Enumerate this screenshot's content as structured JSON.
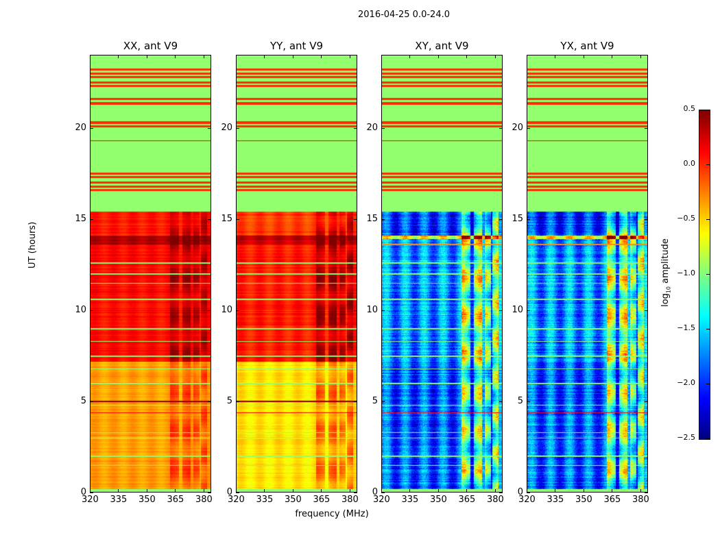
{
  "chart_data": {
    "type": "heatmap",
    "title": "2016-04-25 0.0-24.0",
    "xlabel": "frequency (MHz)",
    "ylabel": "UT (hours)",
    "xlim": [
      320,
      384
    ],
    "ylim": [
      0,
      24
    ],
    "xticks": [
      320,
      335,
      350,
      365,
      380
    ],
    "yticks": [
      0,
      5,
      10,
      15,
      20
    ],
    "colorbar": {
      "label_main": "log",
      "label_sub": "10",
      "label_rest": " amplitude",
      "colormap": "jet",
      "range": [
        -2.5,
        0.5
      ],
      "ticks": [
        0.5,
        0.0,
        -0.5,
        -1.0,
        -1.5,
        -2.0,
        -2.5
      ],
      "tick_labels": [
        "0.5",
        "0.0",
        "−0.5",
        "−1.0",
        "−1.5",
        "−2.0",
        "−2.5"
      ]
    },
    "flag_value": -0.95,
    "rfi_bands_mhz": [
      [
        362,
        367
      ],
      [
        368.5,
        373
      ],
      [
        374.5,
        377.5
      ],
      [
        378.5,
        381.5
      ]
    ],
    "flag_stripes_hours": [
      23.2,
      23.0,
      22.8,
      22.5,
      22.3,
      21.6,
      21.35,
      20.3,
      20.1,
      17.5,
      17.3,
      17.0,
      16.8,
      16.6
    ],
    "green_lines_hours": [
      12.6,
      11.5,
      9.0,
      7.5,
      6.8,
      6.0,
      4.8,
      3.3,
      3.0,
      2.0,
      1.5,
      12.0,
      10.6,
      8.3
    ],
    "panels": [
      {
        "title": "XX, ant V9",
        "kind": "auto",
        "segments": [
          {
            "from": 15.4,
            "to": 14.1,
            "value": 0.05
          },
          {
            "from": 14.1,
            "to": 13.6,
            "value": 0.38
          },
          {
            "from": 13.6,
            "to": 7.2,
            "value": 0.1
          },
          {
            "from": 7.2,
            "to": 0.2,
            "value": -0.35
          }
        ],
        "rfi_boost": 0.3,
        "ripple": 0.06
      },
      {
        "title": "YY, ant V9",
        "kind": "auto",
        "segments": [
          {
            "from": 15.4,
            "to": 14.1,
            "value": -0.05
          },
          {
            "from": 14.1,
            "to": 13.6,
            "value": 0.3
          },
          {
            "from": 13.6,
            "to": 7.2,
            "value": 0.05
          },
          {
            "from": 7.2,
            "to": 0.2,
            "value": -0.55
          }
        ],
        "rfi_boost": 0.4,
        "ripple": 0.08
      },
      {
        "title": "XY, ant V9",
        "kind": "cross",
        "segments": [
          {
            "from": 15.4,
            "to": 14.1,
            "value": -1.95
          },
          {
            "from": 14.1,
            "to": 13.9,
            "value": -0.6
          },
          {
            "from": 13.9,
            "to": 7.2,
            "value": -1.7
          },
          {
            "from": 7.2,
            "to": 0.2,
            "value": -1.85
          }
        ],
        "rfi_boost": 1.1,
        "ripple": 0.3
      },
      {
        "title": "YX, ant V9",
        "kind": "cross",
        "segments": [
          {
            "from": 15.4,
            "to": 14.1,
            "value": -1.95
          },
          {
            "from": 14.1,
            "to": 13.9,
            "value": -0.6
          },
          {
            "from": 13.9,
            "to": 7.2,
            "value": -1.7
          },
          {
            "from": 7.2,
            "to": 0.2,
            "value": -1.85
          }
        ],
        "rfi_boost": 1.1,
        "ripple": 0.3
      }
    ]
  }
}
